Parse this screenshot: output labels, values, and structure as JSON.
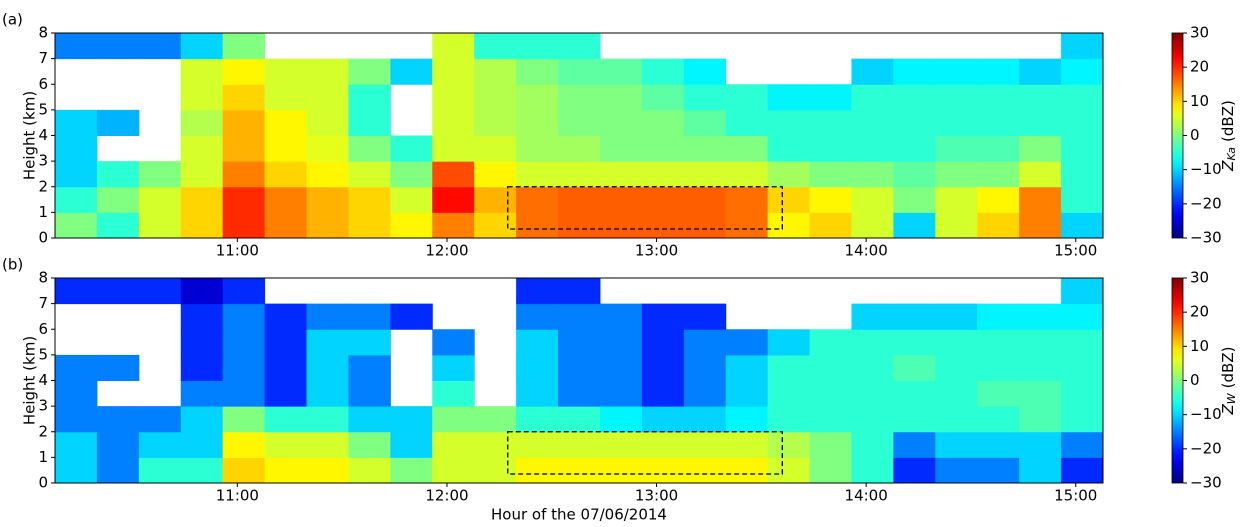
{
  "chart_data": [
    {
      "type": "heatmap",
      "panel_label": "(a)",
      "ylabel": "Height (km)",
      "x": [
        10.23,
        10.43,
        10.63,
        10.83,
        11.03,
        11.23,
        11.43,
        11.63,
        11.83,
        12.03,
        12.23,
        12.43,
        12.63,
        12.83,
        13.03,
        13.23,
        13.43,
        13.63,
        13.83,
        14.03,
        14.23,
        14.43,
        14.63,
        14.83,
        15.03
      ],
      "y": [
        0.5,
        1.5,
        2.5,
        3.5,
        4.5,
        5.5,
        6.5,
        7.5
      ],
      "values": [
        [
          0,
          -5,
          5,
          10,
          20,
          15,
          12,
          10,
          8,
          15,
          10,
          16,
          17,
          17,
          17,
          17,
          16,
          8,
          10,
          5,
          -10,
          5,
          10,
          15,
          -10
        ],
        [
          -5,
          0,
          5,
          10,
          20,
          15,
          12,
          10,
          5,
          22,
          12,
          16,
          17,
          17,
          17,
          17,
          16,
          10,
          8,
          5,
          0,
          5,
          8,
          15,
          -5
        ],
        [
          -10,
          -5,
          0,
          5,
          15,
          10,
          8,
          5,
          0,
          18,
          8,
          5,
          5,
          5,
          5,
          5,
          5,
          2,
          0,
          0,
          -2,
          0,
          0,
          5,
          -5
        ],
        [
          -10,
          null,
          null,
          5,
          12,
          8,
          6,
          0,
          -5,
          5,
          5,
          2,
          2,
          0,
          0,
          0,
          0,
          -5,
          -5,
          -5,
          -5,
          -3,
          -3,
          0,
          -5
        ],
        [
          -10,
          -12,
          null,
          3,
          12,
          8,
          5,
          -5,
          null,
          5,
          3,
          2,
          0,
          0,
          0,
          -2,
          -5,
          -5,
          -5,
          -5,
          -5,
          -5,
          -5,
          -5,
          -5
        ],
        [
          null,
          null,
          null,
          5,
          10,
          5,
          5,
          -5,
          null,
          5,
          3,
          2,
          0,
          0,
          -2,
          -5,
          -5,
          -8,
          -8,
          -5,
          -5,
          -5,
          -5,
          -5,
          -5
        ],
        [
          null,
          null,
          null,
          5,
          8,
          5,
          5,
          0,
          -10,
          5,
          3,
          0,
          -2,
          -2,
          -5,
          -8,
          null,
          null,
          null,
          -10,
          -8,
          -8,
          -8,
          -10,
          -8
        ],
        [
          -15,
          -15,
          -15,
          -10,
          0,
          null,
          null,
          null,
          null,
          5,
          -5,
          -5,
          -5,
          null,
          null,
          null,
          null,
          null,
          null,
          null,
          null,
          null,
          null,
          null,
          -10
        ]
      ],
      "xlim": [
        10.13,
        15.13
      ],
      "xticks": [
        {
          "value": 11,
          "label": "11:00"
        },
        {
          "value": 12,
          "label": "12:00"
        },
        {
          "value": 13,
          "label": "13:00"
        },
        {
          "value": 14,
          "label": "14:00"
        },
        {
          "value": 15,
          "label": "15:00"
        }
      ],
      "ylim": [
        0,
        8
      ],
      "yticks": [
        0,
        1,
        2,
        3,
        4,
        5,
        6,
        7,
        8
      ],
      "colormap": "jet",
      "clim": [
        -30,
        30
      ],
      "cticks": [
        {
          "value": -30,
          "label": "−30"
        },
        {
          "value": -20,
          "label": "−20"
        },
        {
          "value": -10,
          "label": "−10"
        },
        0,
        10,
        20,
        30
      ],
      "colorbar_label": {
        "symbol": "Z",
        "subscript": "Ka",
        "unit": "(dBZ)"
      },
      "box": {
        "x": [
          12.29,
          13.6
        ],
        "y": [
          0.35,
          2.0
        ]
      }
    },
    {
      "type": "heatmap",
      "panel_label": "(b)",
      "ylabel": "Height (km)",
      "xlabel": "Hour of the 07/06/2014",
      "x": [
        10.23,
        10.43,
        10.63,
        10.83,
        11.03,
        11.23,
        11.43,
        11.63,
        11.83,
        12.03,
        12.23,
        12.43,
        12.63,
        12.83,
        13.03,
        13.23,
        13.43,
        13.63,
        13.83,
        14.03,
        14.23,
        14.43,
        14.63,
        14.83,
        15.03
      ],
      "y": [
        0.5,
        1.5,
        2.5,
        3.5,
        4.5,
        5.5,
        6.5,
        7.5
      ],
      "values": [
        [
          -10,
          -15,
          -5,
          -5,
          10,
          8,
          8,
          5,
          0,
          5,
          5,
          8,
          8,
          8,
          8,
          8,
          8,
          5,
          0,
          -5,
          -20,
          -15,
          -15,
          -10,
          -20
        ],
        [
          -10,
          -15,
          -10,
          -10,
          8,
          5,
          5,
          0,
          -10,
          5,
          5,
          5,
          5,
          5,
          5,
          5,
          5,
          3,
          0,
          -5,
          -15,
          -10,
          -10,
          -10,
          -15
        ],
        [
          -15,
          -15,
          -15,
          -10,
          0,
          -5,
          -5,
          -10,
          -10,
          0,
          0,
          -5,
          -5,
          -8,
          -10,
          -10,
          -8,
          -5,
          -5,
          -5,
          -5,
          -5,
          -5,
          -3,
          -5
        ],
        [
          -15,
          null,
          null,
          -15,
          -15,
          -20,
          -10,
          -15,
          null,
          -5,
          null,
          -10,
          -15,
          -15,
          -20,
          -15,
          -10,
          -5,
          -5,
          -5,
          -5,
          -5,
          -3,
          -3,
          -5
        ],
        [
          -15,
          -15,
          null,
          -20,
          -15,
          -20,
          -10,
          -15,
          null,
          -10,
          null,
          -10,
          -15,
          -15,
          -20,
          -15,
          -10,
          -5,
          -5,
          -5,
          -3,
          -5,
          -5,
          -5,
          -5
        ],
        [
          null,
          null,
          null,
          -20,
          -15,
          -20,
          -10,
          -10,
          null,
          -15,
          null,
          -10,
          -15,
          -15,
          -20,
          -15,
          -15,
          -10,
          -5,
          -5,
          -5,
          -5,
          -5,
          -5,
          -5
        ],
        [
          null,
          null,
          null,
          -20,
          -15,
          -20,
          -15,
          -15,
          -20,
          null,
          null,
          -15,
          -15,
          -15,
          -20,
          -20,
          null,
          null,
          null,
          -10,
          -10,
          -10,
          -8,
          -8,
          -8
        ],
        [
          -20,
          -20,
          -20,
          -25,
          -20,
          null,
          null,
          null,
          null,
          null,
          null,
          -20,
          -20,
          null,
          null,
          null,
          null,
          null,
          null,
          null,
          null,
          null,
          null,
          null,
          -10
        ]
      ],
      "xlim": [
        10.13,
        15.13
      ],
      "xticks": [
        {
          "value": 11,
          "label": "11:00"
        },
        {
          "value": 12,
          "label": "12:00"
        },
        {
          "value": 13,
          "label": "13:00"
        },
        {
          "value": 14,
          "label": "14:00"
        },
        {
          "value": 15,
          "label": "15:00"
        }
      ],
      "ylim": [
        0,
        8
      ],
      "yticks": [
        0,
        1,
        2,
        3,
        4,
        5,
        6,
        7,
        8
      ],
      "colormap": "jet",
      "clim": [
        -30,
        30
      ],
      "cticks": [
        {
          "value": -30,
          "label": "−30"
        },
        {
          "value": -20,
          "label": "−20"
        },
        {
          "value": -10,
          "label": "−10"
        },
        0,
        10,
        20,
        30
      ],
      "colorbar_label": {
        "symbol": "Z",
        "subscript": "W",
        "unit": "(dBZ)"
      },
      "box": {
        "x": [
          12.29,
          13.6
        ],
        "y": [
          0.35,
          2.0
        ]
      }
    }
  ]
}
